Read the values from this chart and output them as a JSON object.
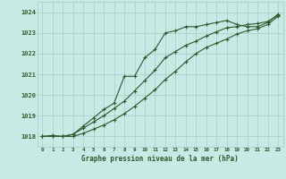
{
  "xlabel": "Graphe pression niveau de la mer (hPa)",
  "bg_color": "#c8eae4",
  "grid_color": "#a0cec6",
  "line_color": "#2d5a2d",
  "xlim": [
    -0.5,
    23.5
  ],
  "ylim": [
    1017.5,
    1024.5
  ],
  "yticks": [
    1018,
    1019,
    1020,
    1021,
    1022,
    1023,
    1024
  ],
  "xticks": [
    0,
    1,
    2,
    3,
    4,
    5,
    6,
    7,
    8,
    9,
    10,
    11,
    12,
    13,
    14,
    15,
    16,
    17,
    18,
    19,
    20,
    21,
    22,
    23
  ],
  "series1": [
    1018.0,
    1018.05,
    1018.0,
    1018.1,
    1018.5,
    1018.9,
    1019.3,
    1019.6,
    1020.9,
    1020.9,
    1021.8,
    1022.2,
    1023.0,
    1023.1,
    1023.3,
    1023.3,
    1023.4,
    1023.5,
    1023.6,
    1023.4,
    1023.3,
    1023.3,
    1023.5,
    1023.9
  ],
  "series2": [
    1018.0,
    1018.0,
    1018.0,
    1018.1,
    1018.4,
    1018.7,
    1019.0,
    1019.35,
    1019.7,
    1020.2,
    1020.7,
    1021.2,
    1021.8,
    1022.1,
    1022.4,
    1022.6,
    1022.85,
    1023.05,
    1023.25,
    1023.3,
    1023.4,
    1023.45,
    1023.55,
    1023.85
  ],
  "series3": [
    1018.0,
    1018.0,
    1018.0,
    1018.0,
    1018.15,
    1018.35,
    1018.55,
    1018.8,
    1019.1,
    1019.45,
    1019.85,
    1020.25,
    1020.75,
    1021.15,
    1021.6,
    1022.0,
    1022.3,
    1022.5,
    1022.7,
    1022.95,
    1023.1,
    1023.2,
    1023.4,
    1023.8
  ]
}
